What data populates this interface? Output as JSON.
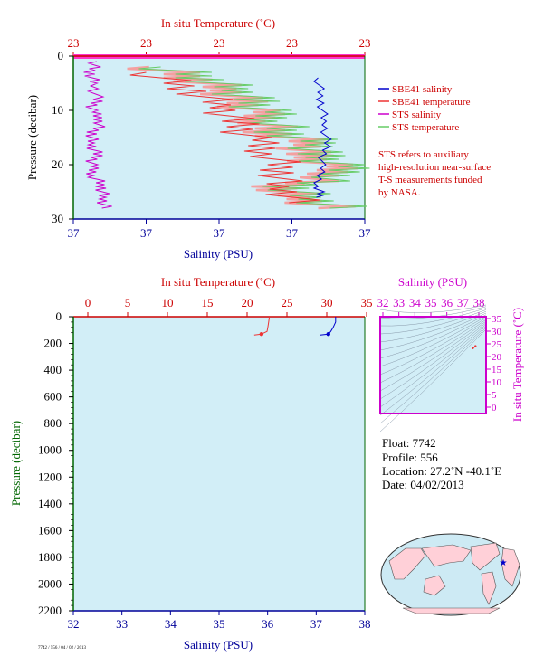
{
  "colors": {
    "temp_axis": "#cc0000",
    "salinity_axis": "#000099",
    "pressure_axis": "#006600",
    "sts_salinity": "#cc00cc",
    "sts_temperature": "#66cc66",
    "sbe_salinity": "#0000cc",
    "sbe_temperature": "#ee3333",
    "plot_bg": "#d2eef7",
    "sts_temp_band": "#f4a0a0"
  },
  "top": {
    "top_axis_title": "In situ Temperature (˚C)",
    "top_ticks": [
      "23",
      "23",
      "23",
      "23",
      "23"
    ],
    "left_axis_title": "Pressure (decibar)",
    "left_ticks": [
      "0",
      "10",
      "20",
      "30"
    ],
    "bottom_axis_title": "Salinity (PSU)",
    "bottom_ticks": [
      "37",
      "37",
      "37",
      "37",
      "37"
    ],
    "legend": [
      {
        "label": "SBE41 salinity",
        "color": "#0000cc"
      },
      {
        "label": "SBE41 temperature",
        "color": "#ee3333"
      },
      {
        "label": "STS salinity",
        "color": "#cc00cc"
      },
      {
        "label": "STS temperature",
        "color": "#66cc66"
      }
    ],
    "note_lines": [
      "STS refers to auxiliary",
      "high-resolution near-surface",
      "T-S measurements funded",
      "by NASA."
    ]
  },
  "main": {
    "top_axis_title": "In situ Temperature (˚C)",
    "top_ticks": [
      "0",
      "5",
      "10",
      "15",
      "20",
      "25",
      "30",
      "35"
    ],
    "left_axis_title": "Pressure (decibar)",
    "left_ticks": [
      "0",
      "200",
      "400",
      "600",
      "800",
      "1000",
      "1200",
      "1400",
      "1600",
      "1800",
      "2000",
      "2200"
    ],
    "bottom_axis_title": "Salinity (PSU)",
    "bottom_ticks": [
      "32",
      "33",
      "34",
      "35",
      "36",
      "37",
      "38"
    ]
  },
  "ts": {
    "top_axis_title": "Salinity (PSU)",
    "top_ticks": [
      "32",
      "33",
      "34",
      "35",
      "36",
      "37",
      "38"
    ],
    "right_axis_title": "In situ Temperature (˚C)",
    "right_ticks": [
      "0",
      "5",
      "10",
      "15",
      "20",
      "25",
      "30",
      "35"
    ]
  },
  "info": {
    "float": "Float:  7742",
    "profile": "Profile:  556",
    "location": "Location:  27.2˚N  -40.1˚E",
    "date": "Date:  04/02/2013"
  },
  "footer_text": "7742 / 556 / 04 / 02 / 2013",
  "chart_data": [
    {
      "type": "line",
      "title": "",
      "xlabel_top": "In situ Temperature (˚C)",
      "xlabel_bottom": "Salinity (PSU)",
      "ylabel": "Pressure (decibar)",
      "ylim": [
        0,
        30
      ],
      "series": [
        {
          "name": "STS salinity",
          "pressure": [
            1,
            3,
            5,
            8,
            10,
            12,
            14,
            16,
            18,
            20,
            22,
            24,
            26,
            28
          ],
          "x_fraction": [
            0.08,
            0.06,
            0.07,
            0.08,
            0.06,
            0.1,
            0.07,
            0.06,
            0.08,
            0.06,
            0.07,
            0.1,
            0.1,
            0.11
          ]
        },
        {
          "name": "STS temperature",
          "pressure": [
            2,
            4,
            6,
            8,
            10,
            12,
            14,
            16,
            18,
            20,
            22,
            24,
            26,
            28
          ],
          "x_fraction": [
            0.3,
            0.45,
            0.55,
            0.6,
            0.65,
            0.7,
            0.72,
            0.85,
            0.82,
            0.9,
            0.95,
            0.75,
            0.8,
            0.93
          ]
        },
        {
          "name": "SBE41 salinity",
          "pressure": [
            4,
            8,
            12,
            16,
            20,
            24,
            26
          ],
          "x_fraction": [
            0.84,
            0.85,
            0.86,
            0.87,
            0.85,
            0.84,
            0.85
          ]
        },
        {
          "name": "SBE41 temperature",
          "pressure": [
            3,
            6,
            9,
            12,
            15,
            18,
            21,
            24,
            27
          ],
          "x_fraction": [
            0.25,
            0.4,
            0.5,
            0.55,
            0.6,
            0.68,
            0.72,
            0.7,
            0.78
          ]
        }
      ]
    },
    {
      "type": "line",
      "title": "",
      "xlabel_top": "In situ Temperature (˚C)",
      "xlim_top": [
        0,
        35
      ],
      "xlabel_bottom": "Salinity (PSU)",
      "xlim_bottom": [
        32,
        38
      ],
      "ylabel": "Pressure (decibar)",
      "ylim": [
        0,
        2200
      ],
      "series": [
        {
          "name": "SBE41 temperature",
          "temperature": [
            22.8,
            22.7,
            22.6,
            22.5,
            21.8
          ],
          "pressure": [
            0,
            40,
            80,
            110,
            130
          ]
        },
        {
          "name": "SBE41 salinity",
          "salinity": [
            37.4,
            37.4,
            37.35,
            37.3,
            37.25
          ],
          "pressure": [
            0,
            40,
            80,
            110,
            130
          ]
        }
      ]
    },
    {
      "type": "scatter",
      "title": "",
      "xlabel": "Salinity (PSU)",
      "ylabel": "In situ Temperature (˚C)",
      "xlim": [
        32,
        38
      ],
      "ylim": [
        -5,
        35
      ],
      "points": [
        {
          "salinity": 37.25,
          "temperature": 22.0
        },
        {
          "salinity": 37.4,
          "temperature": 22.8
        }
      ]
    }
  ]
}
